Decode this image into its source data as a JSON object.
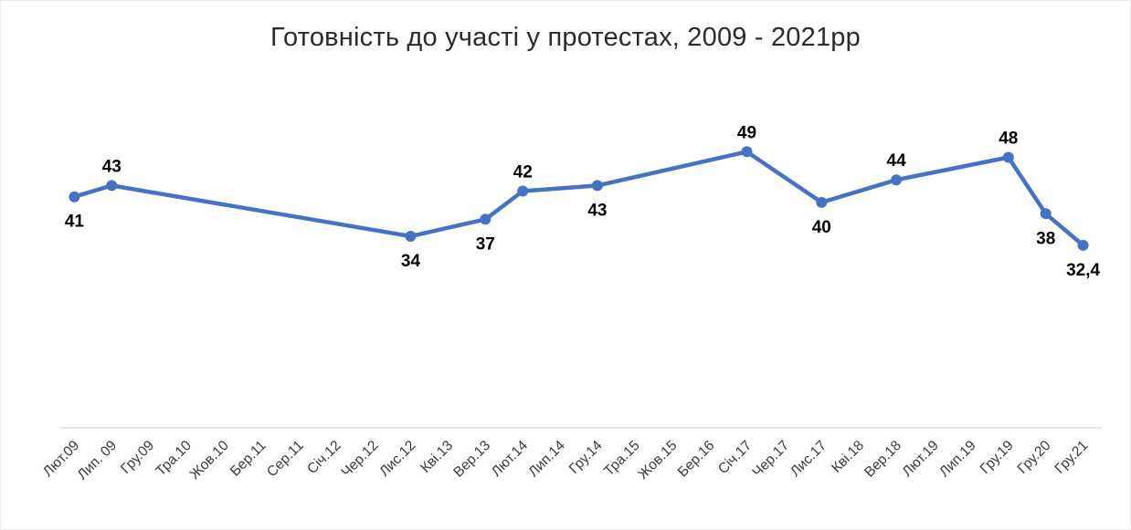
{
  "title": "Готовність до участі у протестах, 2009 - 2021рр",
  "chart_data": {
    "type": "line",
    "title": "Готовність до участі у протестах, 2009 - 2021рр",
    "categories": [
      "Лют.09",
      "Лип. 09",
      "Гру.09",
      "Тра.10",
      "Жов.10",
      "Бер.11",
      "Сер.11",
      "Січ.12",
      "Чер.12",
      "Лис.12",
      "Кві.13",
      "Вер.13",
      "Лют.14",
      "Лип.14",
      "Гру.14",
      "Тра.15",
      "Жов.15",
      "Бер.16",
      "Січ.17",
      "Чер.17",
      "Лис.17",
      "Кві.18",
      "Вер.18",
      "Лют.19",
      "Лип.19",
      "Гру.19",
      "Гру.20",
      "Гру.21"
    ],
    "series": [
      {
        "name": "Готовність до участі у протестах",
        "values": [
          41,
          43,
          null,
          null,
          null,
          null,
          null,
          null,
          null,
          34,
          null,
          37,
          42,
          null,
          43,
          null,
          null,
          null,
          49,
          null,
          40,
          null,
          44,
          null,
          null,
          48,
          38,
          32.4
        ]
      }
    ],
    "data_labels": [
      "41",
      "43",
      "",
      "",
      "",
      "",
      "",
      "",
      "",
      "34",
      "",
      "37",
      "42",
      "",
      "43",
      "",
      "",
      "",
      "49",
      "",
      "40",
      "",
      "44",
      "",
      "",
      "48",
      "38",
      "32,4"
    ],
    "label_positions": [
      "below",
      "above",
      "",
      "",
      "",
      "",
      "",
      "",
      "",
      "below",
      "",
      "below",
      "above",
      "",
      "below",
      "",
      "",
      "",
      "above",
      "",
      "below",
      "",
      "above",
      "",
      "",
      "above",
      "below",
      "below"
    ],
    "line_color": "#4472C4",
    "marker_color": "#4472C4",
    "label_color": "#000000",
    "axis_line_color": "#d6d6d6",
    "tick_label_color": "#3a3a3a",
    "ylim": [
      0,
      62
    ],
    "grid": false,
    "legend": "none",
    "xlabel": "",
    "ylabel": ""
  }
}
